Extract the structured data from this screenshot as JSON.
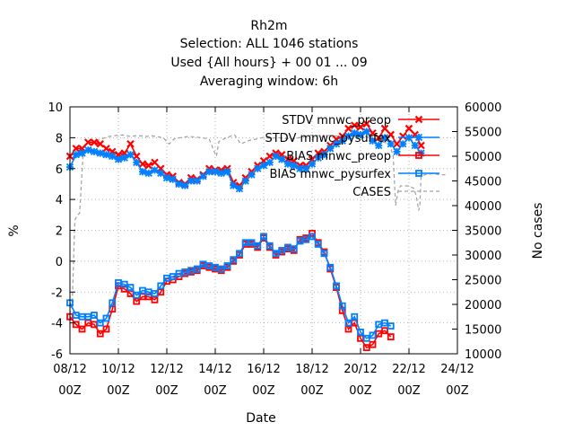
{
  "chart_data": {
    "type": "line",
    "title_lines": [
      "Rh2m",
      "Selection: ALL    1046 stations",
      "Used {All hours} + 00 01 ... 09",
      "Averaging window:  6h"
    ],
    "xlabel": "Date",
    "ylabel": "%",
    "y2label": "No cases",
    "xlim": [
      0,
      16
    ],
    "ylim": [
      -6,
      10
    ],
    "y2lim": [
      10000,
      60000
    ],
    "x_ticks": [
      {
        "x": 0,
        "line1": "08/12",
        "line2": "00Z"
      },
      {
        "x": 2,
        "line1": "10/12",
        "line2": "00Z"
      },
      {
        "x": 4,
        "line1": "12/12",
        "line2": "00Z"
      },
      {
        "x": 6,
        "line1": "14/12",
        "line2": "00Z"
      },
      {
        "x": 8,
        "line1": "16/12",
        "line2": "00Z"
      },
      {
        "x": 10,
        "line1": "18/12",
        "line2": "00Z"
      },
      {
        "x": 12,
        "line1": "20/12",
        "line2": "00Z"
      },
      {
        "x": 14,
        "line1": "22/12",
        "line2": "00Z"
      },
      {
        "x": 16,
        "line1": "24/12",
        "line2": "00Z"
      }
    ],
    "y_ticks": [
      -6,
      -4,
      -2,
      0,
      2,
      4,
      6,
      8,
      10
    ],
    "y2_ticks": [
      10000,
      15000,
      20000,
      25000,
      30000,
      35000,
      40000,
      45000,
      50000,
      55000,
      60000
    ],
    "grid": true,
    "legend_position": "top-right",
    "series": [
      {
        "name": "STDV mnwc_preop",
        "axis": "y1",
        "color": "#ff0000",
        "marker": "x",
        "points": [
          [
            0,
            6.8
          ],
          [
            0.25,
            7.3
          ],
          [
            0.5,
            7.3
          ],
          [
            0.75,
            7.7
          ],
          [
            1,
            7.7
          ],
          [
            1.25,
            7.6
          ],
          [
            1.5,
            7.3
          ],
          [
            1.75,
            7.1
          ],
          [
            2,
            6.9
          ],
          [
            2.25,
            7.0
          ],
          [
            2.5,
            7.6
          ],
          [
            2.75,
            6.8
          ],
          [
            3,
            6.3
          ],
          [
            3.25,
            6.2
          ],
          [
            3.5,
            6.4
          ],
          [
            3.75,
            6.0
          ],
          [
            4,
            5.6
          ],
          [
            4.25,
            5.5
          ],
          [
            4.5,
            5.1
          ],
          [
            4.75,
            5.0
          ],
          [
            5,
            5.4
          ],
          [
            5.25,
            5.3
          ],
          [
            5.5,
            5.6
          ],
          [
            5.75,
            6.0
          ],
          [
            6,
            5.9
          ],
          [
            6.25,
            5.9
          ],
          [
            6.5,
            6.0
          ],
          [
            6.75,
            5.1
          ],
          [
            7,
            4.9
          ],
          [
            7.25,
            5.4
          ],
          [
            7.5,
            5.8
          ],
          [
            7.75,
            6.2
          ],
          [
            8,
            6.5
          ],
          [
            8.25,
            6.8
          ],
          [
            8.5,
            7.0
          ],
          [
            8.75,
            6.9
          ],
          [
            9,
            6.6
          ],
          [
            9.25,
            6.5
          ],
          [
            9.5,
            6.2
          ],
          [
            9.75,
            6.2
          ],
          [
            10,
            6.6
          ],
          [
            10.25,
            7.0
          ],
          [
            10.5,
            7.1
          ],
          [
            10.75,
            7.5
          ],
          [
            11,
            7.9
          ],
          [
            11.25,
            8.1
          ],
          [
            11.5,
            8.6
          ],
          [
            11.75,
            8.8
          ],
          [
            12,
            8.7
          ],
          [
            12.25,
            8.9
          ],
          [
            12.5,
            8.3
          ],
          [
            12.75,
            8.0
          ],
          [
            13,
            8.6
          ],
          [
            13.25,
            8.2
          ],
          [
            13.5,
            7.6
          ],
          [
            13.75,
            8.1
          ],
          [
            14,
            8.6
          ],
          [
            14.25,
            8.2
          ],
          [
            14.5,
            7.5
          ]
        ]
      },
      {
        "name": "STDV mnwc_pysurfex",
        "axis": "y1",
        "color": "#0080ff",
        "marker": "star",
        "points": [
          [
            0,
            6.1
          ],
          [
            0.25,
            6.9
          ],
          [
            0.5,
            7.0
          ],
          [
            0.75,
            7.2
          ],
          [
            1,
            7.1
          ],
          [
            1.25,
            7.0
          ],
          [
            1.5,
            6.9
          ],
          [
            1.75,
            6.8
          ],
          [
            2,
            6.6
          ],
          [
            2.25,
            6.7
          ],
          [
            2.5,
            6.9
          ],
          [
            2.75,
            6.4
          ],
          [
            3,
            5.8
          ],
          [
            3.25,
            5.7
          ],
          [
            3.5,
            5.9
          ],
          [
            3.75,
            5.7
          ],
          [
            4,
            5.4
          ],
          [
            4.25,
            5.3
          ],
          [
            4.5,
            5.0
          ],
          [
            4.75,
            4.9
          ],
          [
            5,
            5.2
          ],
          [
            5.25,
            5.2
          ],
          [
            5.5,
            5.5
          ],
          [
            5.75,
            5.8
          ],
          [
            6,
            5.8
          ],
          [
            6.25,
            5.7
          ],
          [
            6.5,
            5.8
          ],
          [
            6.75,
            4.9
          ],
          [
            7,
            4.7
          ],
          [
            7.25,
            5.2
          ],
          [
            7.5,
            5.6
          ],
          [
            7.75,
            6.0
          ],
          [
            8,
            6.2
          ],
          [
            8.25,
            6.4
          ],
          [
            8.5,
            6.8
          ],
          [
            8.75,
            6.6
          ],
          [
            9,
            6.3
          ],
          [
            9.25,
            6.2
          ],
          [
            9.5,
            6.0
          ],
          [
            9.75,
            6.0
          ],
          [
            10,
            6.3
          ],
          [
            10.25,
            6.7
          ],
          [
            10.5,
            6.9
          ],
          [
            10.75,
            7.3
          ],
          [
            11,
            7.6
          ],
          [
            11.25,
            7.8
          ],
          [
            11.5,
            8.1
          ],
          [
            11.75,
            8.3
          ],
          [
            12,
            8.2
          ],
          [
            12.25,
            8.4
          ],
          [
            12.5,
            7.8
          ],
          [
            12.75,
            7.5
          ],
          [
            13,
            8.0
          ],
          [
            13.25,
            7.6
          ],
          [
            13.5,
            7.1
          ],
          [
            13.75,
            7.6
          ],
          [
            14,
            8.0
          ],
          [
            14.25,
            7.5
          ],
          [
            14.5,
            7.0
          ]
        ]
      },
      {
        "name": "BIAS mnwc_preop",
        "axis": "y1",
        "color": "#ff0000",
        "marker": "square",
        "points": [
          [
            0,
            -3.6
          ],
          [
            0.25,
            -4.1
          ],
          [
            0.5,
            -4.4
          ],
          [
            0.75,
            -4.0
          ],
          [
            1,
            -4.1
          ],
          [
            1.25,
            -4.7
          ],
          [
            1.5,
            -4.4
          ],
          [
            1.75,
            -3.1
          ],
          [
            2,
            -1.6
          ],
          [
            2.25,
            -1.8
          ],
          [
            2.5,
            -2.1
          ],
          [
            2.75,
            -2.6
          ],
          [
            3,
            -2.3
          ],
          [
            3.25,
            -2.3
          ],
          [
            3.5,
            -2.5
          ],
          [
            3.75,
            -2.0
          ],
          [
            4,
            -1.3
          ],
          [
            4.25,
            -1.2
          ],
          [
            4.5,
            -1.0
          ],
          [
            4.75,
            -0.8
          ],
          [
            5,
            -0.7
          ],
          [
            5.25,
            -0.6
          ],
          [
            5.5,
            -0.3
          ],
          [
            5.75,
            -0.4
          ],
          [
            6,
            -0.5
          ],
          [
            6.25,
            -0.6
          ],
          [
            6.5,
            -0.4
          ],
          [
            6.75,
            0.0
          ],
          [
            7,
            0.4
          ],
          [
            7.25,
            1.1
          ],
          [
            7.5,
            1.1
          ],
          [
            7.75,
            0.9
          ],
          [
            8,
            1.5
          ],
          [
            8.25,
            0.9
          ],
          [
            8.5,
            0.4
          ],
          [
            8.75,
            0.6
          ],
          [
            9,
            0.8
          ],
          [
            9.25,
            0.7
          ],
          [
            9.5,
            1.4
          ],
          [
            9.75,
            1.5
          ],
          [
            10,
            1.8
          ],
          [
            10.25,
            1.2
          ],
          [
            10.5,
            0.6
          ],
          [
            10.75,
            -0.5
          ],
          [
            11,
            -1.7
          ],
          [
            11.25,
            -3.2
          ],
          [
            11.5,
            -4.4
          ],
          [
            11.75,
            -4.0
          ],
          [
            12,
            -5.0
          ],
          [
            12.25,
            -5.6
          ],
          [
            12.5,
            -5.4
          ],
          [
            12.75,
            -4.7
          ],
          [
            13,
            -4.5
          ],
          [
            13.25,
            -4.9
          ]
        ]
      },
      {
        "name": "BIAS mnwc_pysurfex",
        "axis": "y1",
        "color": "#0080ff",
        "marker": "square",
        "points": [
          [
            0,
            -2.7
          ],
          [
            0.25,
            -3.5
          ],
          [
            0.5,
            -3.6
          ],
          [
            0.75,
            -3.6
          ],
          [
            1,
            -3.5
          ],
          [
            1.25,
            -4.0
          ],
          [
            1.5,
            -3.7
          ],
          [
            1.75,
            -2.7
          ],
          [
            2,
            -1.4
          ],
          [
            2.25,
            -1.5
          ],
          [
            2.5,
            -1.7
          ],
          [
            2.75,
            -2.2
          ],
          [
            3,
            -1.9
          ],
          [
            3.25,
            -2.0
          ],
          [
            3.5,
            -2.1
          ],
          [
            3.75,
            -1.6
          ],
          [
            4,
            -1.1
          ],
          [
            4.25,
            -1.0
          ],
          [
            4.5,
            -0.8
          ],
          [
            4.75,
            -0.7
          ],
          [
            5,
            -0.6
          ],
          [
            5.25,
            -0.5
          ],
          [
            5.5,
            -0.2
          ],
          [
            5.75,
            -0.3
          ],
          [
            6,
            -0.4
          ],
          [
            6.25,
            -0.5
          ],
          [
            6.5,
            -0.3
          ],
          [
            6.75,
            0.1
          ],
          [
            7,
            0.5
          ],
          [
            7.25,
            1.2
          ],
          [
            7.5,
            1.2
          ],
          [
            7.75,
            1.0
          ],
          [
            8,
            1.6
          ],
          [
            8.25,
            1.0
          ],
          [
            8.5,
            0.5
          ],
          [
            8.75,
            0.7
          ],
          [
            9,
            0.9
          ],
          [
            9.25,
            0.8
          ],
          [
            9.5,
            1.3
          ],
          [
            9.75,
            1.4
          ],
          [
            10,
            1.6
          ],
          [
            10.25,
            1.1
          ],
          [
            10.5,
            0.5
          ],
          [
            10.75,
            -0.4
          ],
          [
            11,
            -1.6
          ],
          [
            11.25,
            -2.9
          ],
          [
            11.5,
            -4.0
          ],
          [
            11.75,
            -3.6
          ],
          [
            12,
            -4.6
          ],
          [
            12.25,
            -5.0
          ],
          [
            12.5,
            -4.8
          ],
          [
            12.75,
            -4.1
          ],
          [
            13,
            -4.0
          ],
          [
            13.25,
            -4.2
          ]
        ]
      },
      {
        "name": "CASES",
        "axis": "y2",
        "color": "#a0a0a0",
        "marker": "none",
        "dashed": true,
        "points": [
          [
            0,
            18000
          ],
          [
            0.1,
            21000
          ],
          [
            0.2,
            37000
          ],
          [
            0.3,
            38000
          ],
          [
            0.4,
            38500
          ],
          [
            0.55,
            51000
          ],
          [
            0.7,
            51500
          ],
          [
            0.85,
            51800
          ],
          [
            1,
            53000
          ],
          [
            1.3,
            53500
          ],
          [
            1.6,
            54000
          ],
          [
            1.9,
            54200
          ],
          [
            2.2,
            54300
          ],
          [
            2.5,
            54000
          ],
          [
            2.8,
            54200
          ],
          [
            3.1,
            54000
          ],
          [
            3.4,
            54100
          ],
          [
            3.7,
            53900
          ],
          [
            3.9,
            53500
          ],
          [
            4.1,
            52500
          ],
          [
            4.3,
            53500
          ],
          [
            4.6,
            53800
          ],
          [
            4.9,
            54000
          ],
          [
            5.2,
            53900
          ],
          [
            5.5,
            53700
          ],
          [
            5.75,
            53500
          ],
          [
            5.95,
            51000
          ],
          [
            6.05,
            50000
          ],
          [
            6.15,
            53000
          ],
          [
            6.4,
            53600
          ],
          [
            6.6,
            54000
          ],
          [
            6.8,
            54300
          ],
          [
            7.05,
            52500
          ],
          [
            7.2,
            52800
          ],
          [
            7.4,
            53200
          ],
          [
            7.7,
            53500
          ],
          [
            8,
            53800
          ],
          [
            8.3,
            53600
          ],
          [
            8.6,
            53800
          ],
          [
            8.9,
            53600
          ],
          [
            9.2,
            53500
          ],
          [
            9.5,
            53800
          ],
          [
            9.8,
            54100
          ],
          [
            10.1,
            54300
          ],
          [
            10.4,
            54000
          ],
          [
            10.7,
            54200
          ],
          [
            11,
            54100
          ],
          [
            11.3,
            54000
          ],
          [
            11.6,
            53900
          ],
          [
            11.8,
            54200
          ],
          [
            12,
            53800
          ],
          [
            12.2,
            54000
          ],
          [
            12.4,
            53700
          ],
          [
            12.6,
            53500
          ],
          [
            12.8,
            53000
          ],
          [
            13,
            52800
          ],
          [
            13.2,
            52500
          ],
          [
            13.35,
            50000
          ],
          [
            13.45,
            40000
          ],
          [
            13.55,
            43000
          ],
          [
            13.65,
            44000
          ],
          [
            13.8,
            44000
          ],
          [
            14,
            44000
          ],
          [
            14.2,
            43500
          ],
          [
            14.3,
            42000
          ],
          [
            14.4,
            39000
          ],
          [
            14.45,
            40000
          ],
          [
            14.5,
            46000
          ],
          [
            14.7,
            46300
          ],
          [
            15,
            46500
          ],
          [
            15.3,
            46200
          ],
          [
            15.6,
            46300
          ]
        ]
      }
    ]
  }
}
